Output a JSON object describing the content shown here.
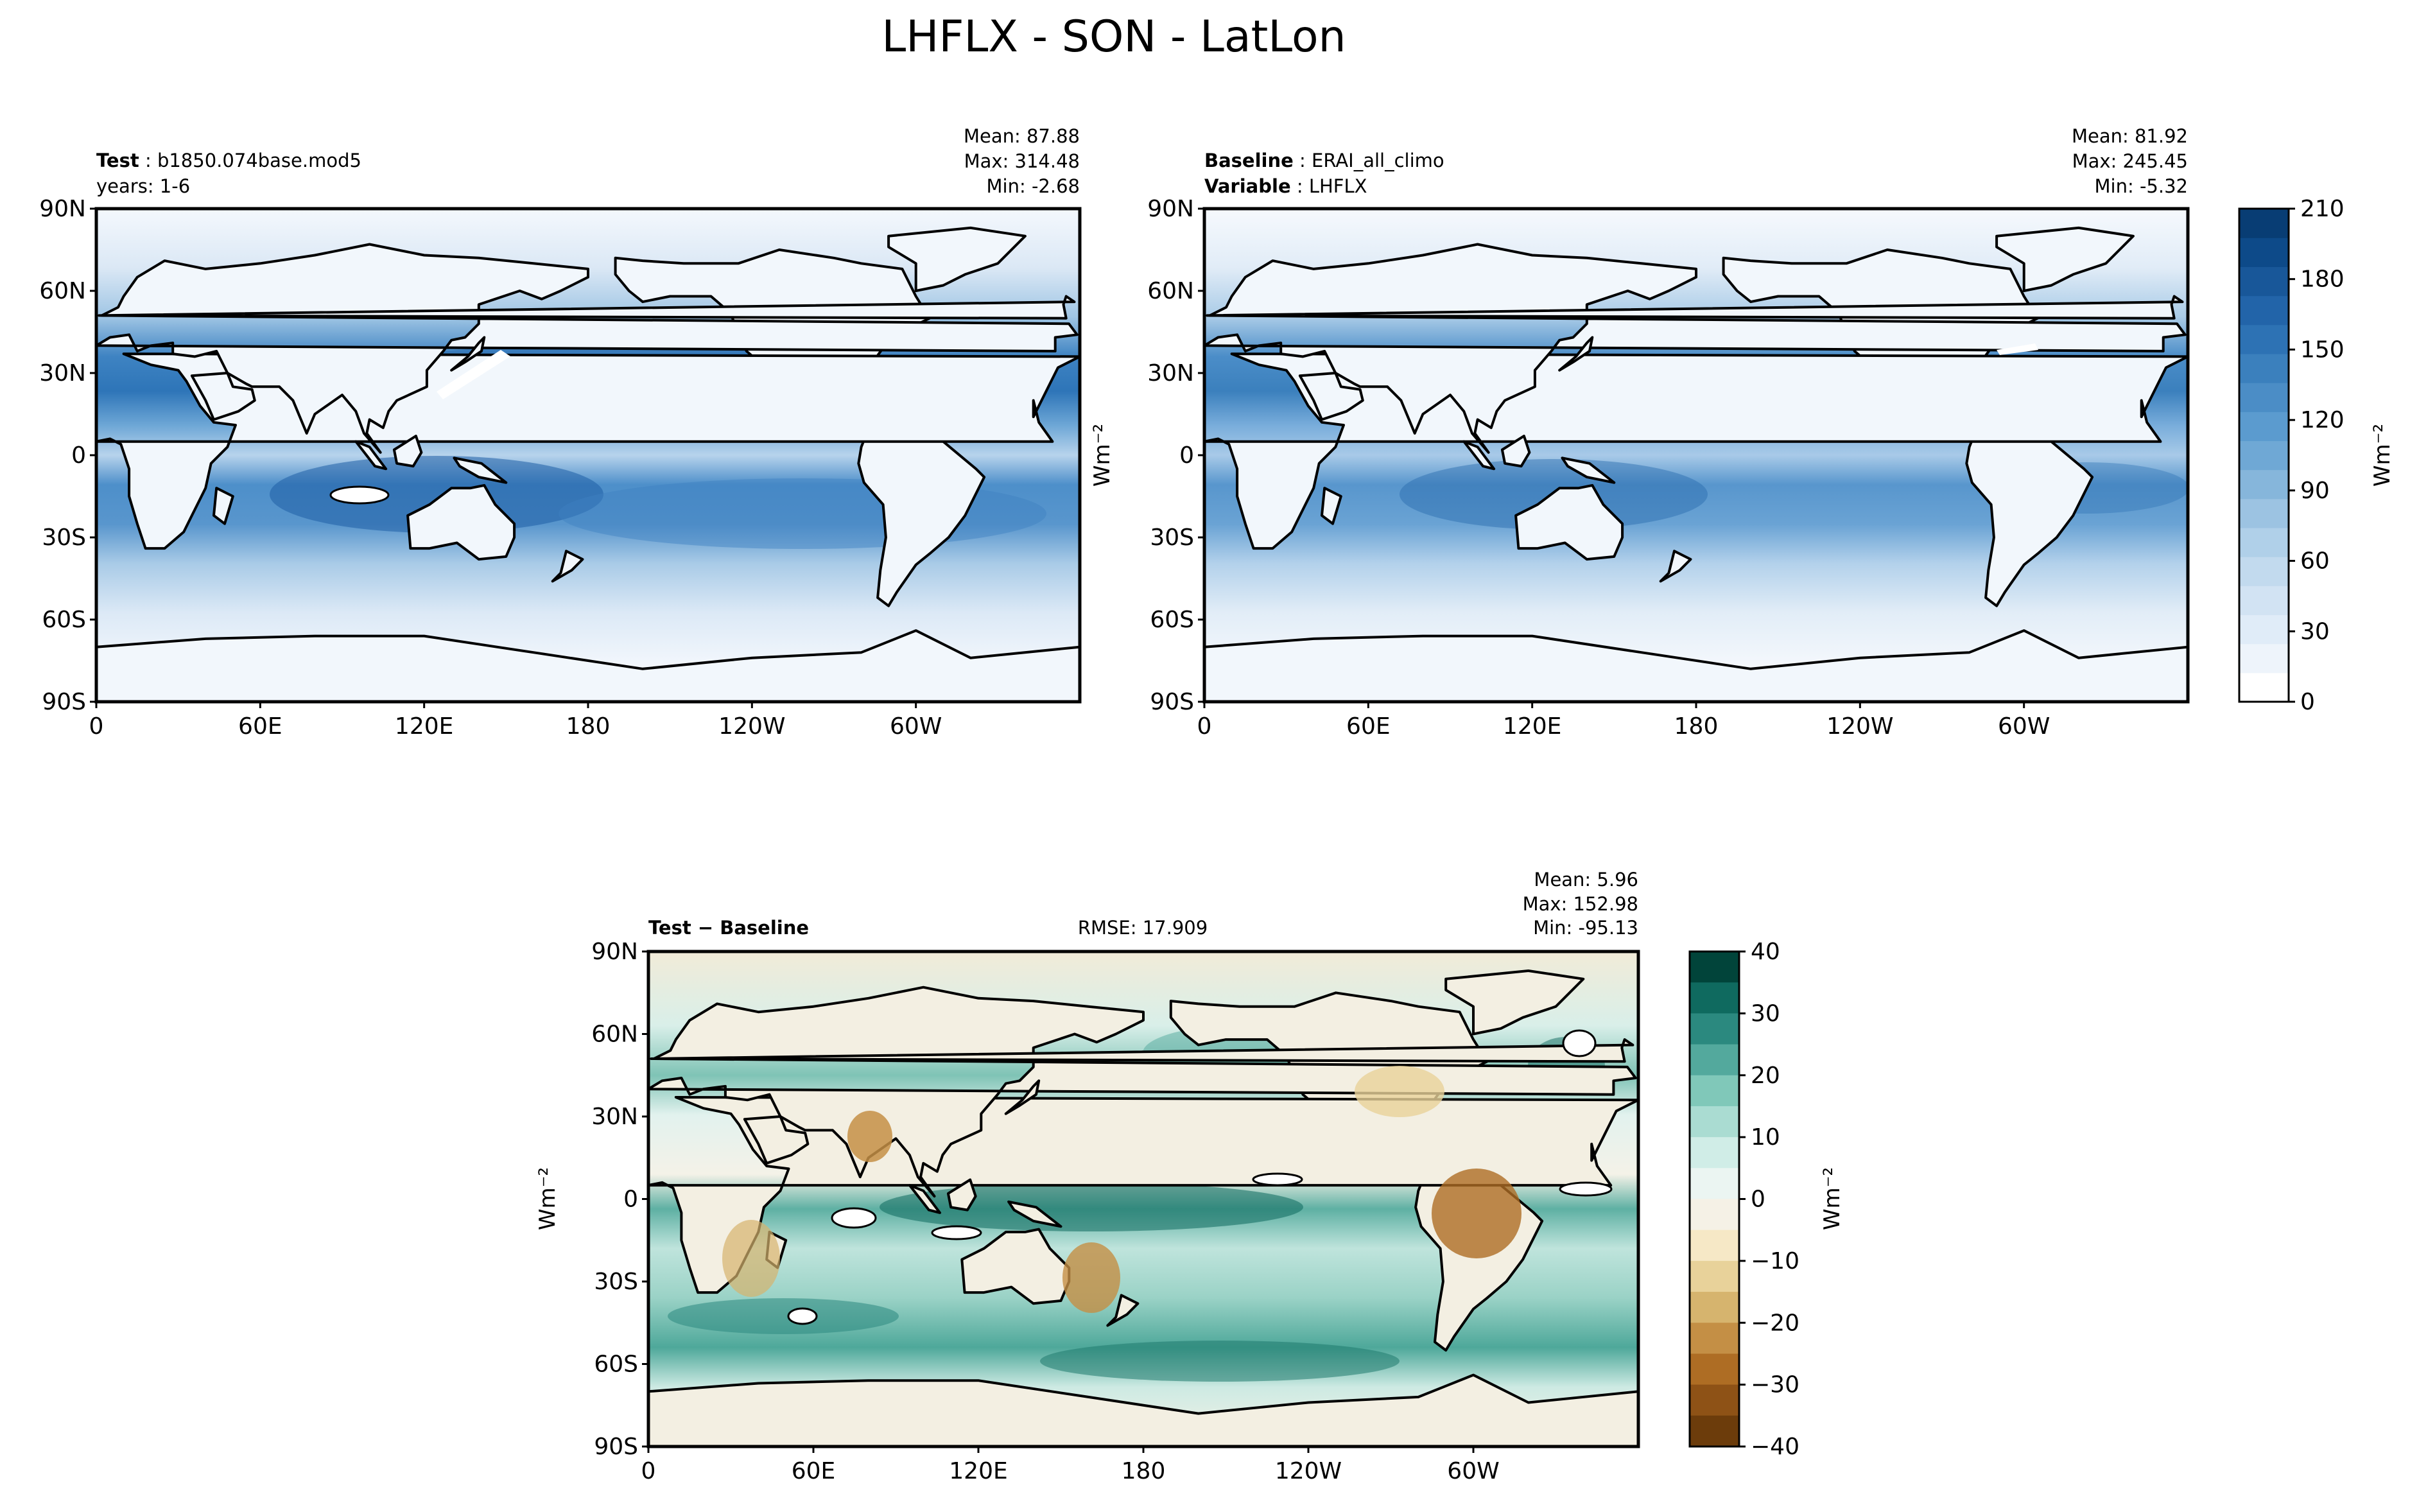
{
  "figure": {
    "title": "LHFLX - SON - LatLon"
  },
  "axes": {
    "lat_ticks": [
      "90N",
      "60N",
      "30N",
      "0",
      "30S",
      "60S",
      "90S"
    ],
    "lon_ticks": [
      "0",
      "60E",
      "120E",
      "180",
      "120W",
      "60W"
    ]
  },
  "panels": {
    "test": {
      "label_bold": "Test",
      "label_value": "b1850.074base.mod5",
      "line2": "years: 1-6",
      "stats": [
        "Mean: 87.88",
        "Max: 314.48",
        "Min: -2.68"
      ]
    },
    "baseline": {
      "label_bold": "Baseline",
      "label_value": "ERAI_all_climo",
      "line2_bold": "Variable",
      "line2_value": "LHFLX",
      "stats": [
        "Mean: 81.92",
        "Max: 245.45",
        "Min: -5.32"
      ]
    },
    "diff": {
      "label": "Test − Baseline",
      "rmse": "RMSE: 17.909",
      "stats": [
        "Mean:  5.96",
        "Max: 152.98",
        "Min: -95.13"
      ]
    }
  },
  "colorbars": {
    "abs": {
      "ticks": [
        "0",
        "30",
        "60",
        "90",
        "120",
        "150",
        "180",
        "210"
      ],
      "unit": "Wm⁻²",
      "colors": [
        "#ffffff",
        "#eef4fb",
        "#e0ecf8",
        "#d2e3f3",
        "#c2daee",
        "#b0d0e9",
        "#9cc3e2",
        "#86b6db",
        "#6fa8d5",
        "#5b9bcf",
        "#4b8dc6",
        "#3b80bd",
        "#2d72b4",
        "#2264a9",
        "#185799",
        "#0d4a89",
        "#083d74"
      ]
    },
    "diff": {
      "ticks": [
        "40",
        "30",
        "20",
        "10",
        "0",
        "−10",
        "−20",
        "−30",
        "−40"
      ],
      "unit": "Wm⁻²",
      "colors": [
        "#01443a",
        "#0f6a5f",
        "#2b897f",
        "#53a99d",
        "#80c8b9",
        "#aadcd2",
        "#d0ede7",
        "#ebf5f2",
        "#f5f1e6",
        "#f6e8c6",
        "#e8d29a",
        "#d6b46e",
        "#c48f45",
        "#ae6d24",
        "#8e5216",
        "#6c3c0b"
      ]
    },
    "map_colors": {
      "land": "#f2f7fc",
      "ocean_high": "#3f82c0",
      "ocean_mid": "#7fb1d9",
      "diff_bg": "#eef5f1"
    }
  },
  "chart_data": [
    {
      "type": "heatmap",
      "title": "LHFLX - SON - LatLon",
      "panel": "Test",
      "xlim": [
        0,
        360
      ],
      "ylim": [
        -90,
        90
      ],
      "mean": 87.88,
      "max": 314.48,
      "min": -2.68,
      "colorbar_range": [
        0,
        210
      ]
    },
    {
      "type": "heatmap",
      "panel": "Baseline",
      "xlim": [
        0,
        360
      ],
      "ylim": [
        -90,
        90
      ],
      "mean": 81.92,
      "max": 245.45,
      "min": -5.32,
      "colorbar_range": [
        0,
        210
      ]
    },
    {
      "type": "heatmap",
      "panel": "Test − Baseline",
      "xlim": [
        0,
        360
      ],
      "ylim": [
        -90,
        90
      ],
      "mean": 5.96,
      "max": 152.98,
      "min": -95.13,
      "rmse": 17.909,
      "colorbar_range": [
        -40,
        40
      ]
    }
  ]
}
